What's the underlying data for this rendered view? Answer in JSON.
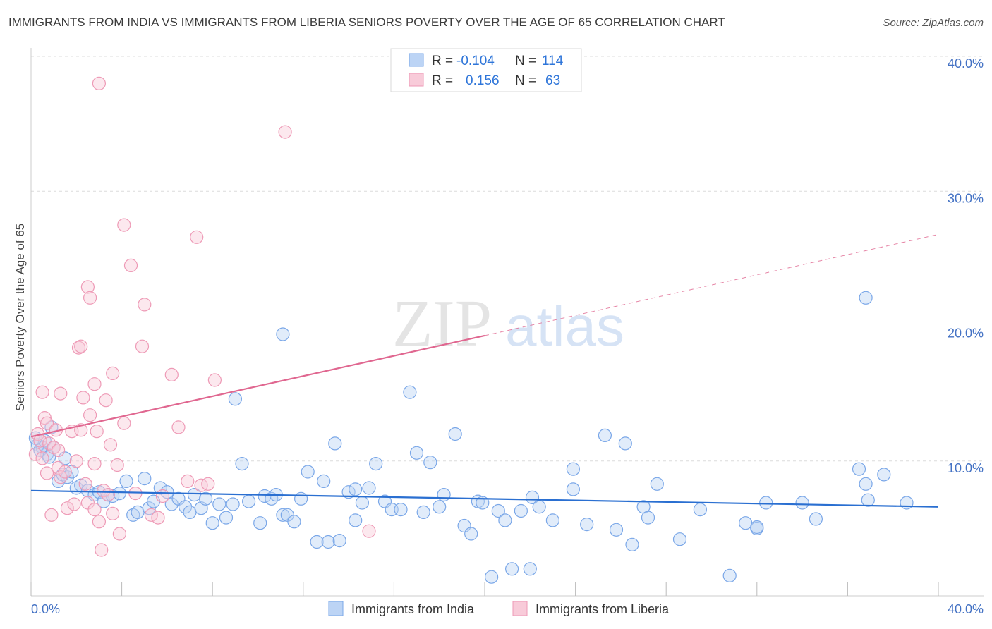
{
  "chart_data": {
    "type": "scatter",
    "title": "IMMIGRANTS FROM INDIA VS IMMIGRANTS FROM LIBERIA SENIORS POVERTY OVER THE AGE OF 65 CORRELATION CHART",
    "source": "Source: ZipAtlas.com",
    "watermark": {
      "zip": "ZIP",
      "atlas": "atlas"
    },
    "xlabel": "",
    "ylabel": "Seniors Poverty Over the Age of 65",
    "xlim": [
      0,
      40
    ],
    "ylim": [
      0,
      40
    ],
    "x_tick_labels": {
      "min": "0.0%",
      "max": "40.0%"
    },
    "y_ticks": [
      {
        "value": 10,
        "label": "10.0%"
      },
      {
        "value": 20,
        "label": "20.0%"
      },
      {
        "value": 30,
        "label": "30.0%"
      },
      {
        "value": 40,
        "label": "40.0%"
      }
    ],
    "stats_legend": [
      {
        "series": "Immigrants from India",
        "r_label": "R =",
        "r_value": "-0.104",
        "n_label": "N =",
        "n_value": "114"
      },
      {
        "series": "Immigrants from Liberia",
        "r_label": "R =",
        "r_value": "0.156",
        "n_label": "N =",
        "n_value": "63"
      }
    ],
    "series": [
      {
        "name": "Immigrants from India",
        "color": "#7aa7e8",
        "fill": "#bcd4f5",
        "trend_color": "#2a6fd1",
        "trend": {
          "x0": 0,
          "y0": 7.8,
          "x1": 40,
          "y1": 6.6,
          "solid_until": 40
        },
        "points": [
          [
            0.3,
            11.2
          ],
          [
            0.5,
            11.0
          ],
          [
            0.7,
            10.5
          ],
          [
            0.4,
            10.8
          ],
          [
            0.9,
            12.5
          ],
          [
            0.6,
            11.5
          ],
          [
            1.0,
            11.0
          ],
          [
            0.8,
            10.3
          ],
          [
            1.2,
            8.5
          ],
          [
            1.4,
            9.0
          ],
          [
            1.6,
            8.8
          ],
          [
            1.8,
            9.2
          ],
          [
            2.0,
            8.0
          ],
          [
            2.2,
            8.2
          ],
          [
            2.5,
            7.8
          ],
          [
            2.8,
            7.5
          ],
          [
            3.0,
            7.7
          ],
          [
            3.2,
            7.0
          ],
          [
            3.4,
            7.5
          ],
          [
            3.6,
            7.4
          ],
          [
            3.9,
            7.6
          ],
          [
            4.2,
            8.5
          ],
          [
            4.5,
            6.0
          ],
          [
            4.7,
            6.2
          ],
          [
            5.0,
            8.7
          ],
          [
            5.2,
            6.5
          ],
          [
            5.4,
            7.0
          ],
          [
            5.7,
            8.0
          ],
          [
            6.0,
            7.7
          ],
          [
            6.2,
            6.8
          ],
          [
            6.5,
            7.2
          ],
          [
            6.8,
            6.6
          ],
          [
            7.0,
            6.2
          ],
          [
            7.2,
            7.5
          ],
          [
            7.5,
            6.5
          ],
          [
            7.7,
            7.2
          ],
          [
            8.0,
            5.4
          ],
          [
            8.3,
            6.8
          ],
          [
            8.6,
            5.8
          ],
          [
            8.9,
            6.8
          ],
          [
            9.3,
            9.8
          ],
          [
            9.0,
            14.6
          ],
          [
            9.6,
            7.0
          ],
          [
            10.1,
            5.4
          ],
          [
            10.3,
            7.4
          ],
          [
            10.6,
            7.2
          ],
          [
            10.8,
            7.5
          ],
          [
            11.1,
            6.0
          ],
          [
            11.3,
            6.0
          ],
          [
            11.6,
            5.5
          ],
          [
            11.9,
            7.2
          ],
          [
            11.1,
            19.4
          ],
          [
            12.2,
            9.2
          ],
          [
            12.6,
            4.0
          ],
          [
            12.9,
            8.5
          ],
          [
            13.1,
            4.0
          ],
          [
            13.4,
            11.3
          ],
          [
            13.6,
            4.1
          ],
          [
            14.0,
            7.7
          ],
          [
            14.3,
            5.6
          ],
          [
            14.3,
            7.9
          ],
          [
            14.6,
            6.9
          ],
          [
            14.9,
            8.0
          ],
          [
            15.2,
            9.8
          ],
          [
            15.6,
            7.0
          ],
          [
            15.9,
            6.4
          ],
          [
            16.3,
            6.4
          ],
          [
            16.7,
            15.1
          ],
          [
            17.0,
            10.6
          ],
          [
            17.3,
            6.2
          ],
          [
            17.6,
            9.9
          ],
          [
            18.0,
            6.6
          ],
          [
            18.2,
            7.5
          ],
          [
            18.7,
            12.0
          ],
          [
            19.1,
            5.2
          ],
          [
            19.4,
            4.6
          ],
          [
            19.7,
            7.0
          ],
          [
            19.9,
            6.9
          ],
          [
            20.3,
            1.4
          ],
          [
            20.6,
            6.3
          ],
          [
            20.9,
            5.6
          ],
          [
            21.2,
            2.0
          ],
          [
            21.6,
            6.3
          ],
          [
            22.0,
            2.0
          ],
          [
            22.1,
            7.3
          ],
          [
            22.4,
            6.6
          ],
          [
            23.0,
            5.6
          ],
          [
            23.9,
            9.4
          ],
          [
            23.9,
            7.9
          ],
          [
            24.5,
            5.3
          ],
          [
            25.3,
            11.9
          ],
          [
            25.8,
            4.9
          ],
          [
            26.2,
            11.3
          ],
          [
            26.5,
            3.8
          ],
          [
            27.0,
            6.6
          ],
          [
            27.2,
            5.8
          ],
          [
            27.6,
            8.3
          ],
          [
            28.6,
            4.2
          ],
          [
            29.5,
            6.4
          ],
          [
            30.8,
            1.5
          ],
          [
            31.5,
            5.4
          ],
          [
            32.0,
            5.0
          ],
          [
            32.4,
            6.9
          ],
          [
            32.0,
            5.1
          ],
          [
            34.0,
            6.9
          ],
          [
            34.6,
            5.7
          ],
          [
            36.5,
            9.4
          ],
          [
            36.8,
            8.3
          ],
          [
            36.9,
            7.1
          ],
          [
            37.6,
            9.0
          ],
          [
            38.6,
            6.9
          ],
          [
            36.8,
            22.1
          ],
          [
            0.2,
            11.7
          ],
          [
            1.5,
            10.2
          ]
        ]
      },
      {
        "name": "Immigrants from Liberia",
        "color": "#ee9ab6",
        "fill": "#f8cbd9",
        "trend_color": "#e06790",
        "trend": {
          "x0": 0,
          "y0": 11.8,
          "x1": 40,
          "y1": 26.8,
          "solid_until": 20
        },
        "points": [
          [
            0.2,
            10.5
          ],
          [
            0.3,
            12.0
          ],
          [
            0.4,
            11.5
          ],
          [
            0.5,
            10.2
          ],
          [
            0.6,
            13.2
          ],
          [
            0.7,
            12.8
          ],
          [
            0.8,
            11.3
          ],
          [
            1.0,
            11.0
          ],
          [
            1.1,
            12.3
          ],
          [
            1.2,
            9.5
          ],
          [
            0.5,
            15.1
          ],
          [
            0.9,
            6.0
          ],
          [
            1.3,
            8.8
          ],
          [
            1.5,
            9.2
          ],
          [
            1.6,
            6.5
          ],
          [
            1.8,
            12.2
          ],
          [
            1.9,
            6.8
          ],
          [
            2.0,
            10.0
          ],
          [
            2.2,
            12.3
          ],
          [
            2.1,
            18.4
          ],
          [
            2.3,
            14.7
          ],
          [
            2.4,
            8.3
          ],
          [
            2.5,
            6.9
          ],
          [
            2.6,
            13.4
          ],
          [
            2.8,
            15.7
          ],
          [
            2.8,
            6.4
          ],
          [
            2.9,
            12.2
          ],
          [
            3.0,
            5.5
          ],
          [
            3.1,
            3.4
          ],
          [
            3.2,
            7.8
          ],
          [
            3.3,
            14.5
          ],
          [
            3.4,
            7.5
          ],
          [
            3.5,
            11.2
          ],
          [
            3.6,
            16.5
          ],
          [
            3.6,
            6.1
          ],
          [
            3.8,
            9.7
          ],
          [
            3.9,
            4.6
          ],
          [
            4.1,
            12.8
          ],
          [
            4.1,
            27.5
          ],
          [
            4.4,
            24.5
          ],
          [
            4.6,
            7.6
          ],
          [
            4.9,
            18.5
          ],
          [
            5.0,
            21.6
          ],
          [
            5.3,
            6.0
          ],
          [
            5.6,
            5.8
          ],
          [
            5.8,
            7.4
          ],
          [
            6.2,
            16.4
          ],
          [
            6.5,
            12.5
          ],
          [
            6.9,
            8.5
          ],
          [
            7.3,
            26.6
          ],
          [
            7.5,
            8.2
          ],
          [
            7.8,
            8.3
          ],
          [
            8.1,
            16.0
          ],
          [
            11.2,
            34.4
          ],
          [
            3.0,
            38.0
          ],
          [
            1.3,
            15.0
          ],
          [
            2.5,
            22.9
          ],
          [
            2.6,
            22.1
          ],
          [
            14.9,
            4.8
          ],
          [
            2.2,
            18.5
          ],
          [
            0.7,
            9.1
          ],
          [
            1.2,
            10.8
          ],
          [
            2.8,
            9.8
          ]
        ]
      }
    ]
  }
}
